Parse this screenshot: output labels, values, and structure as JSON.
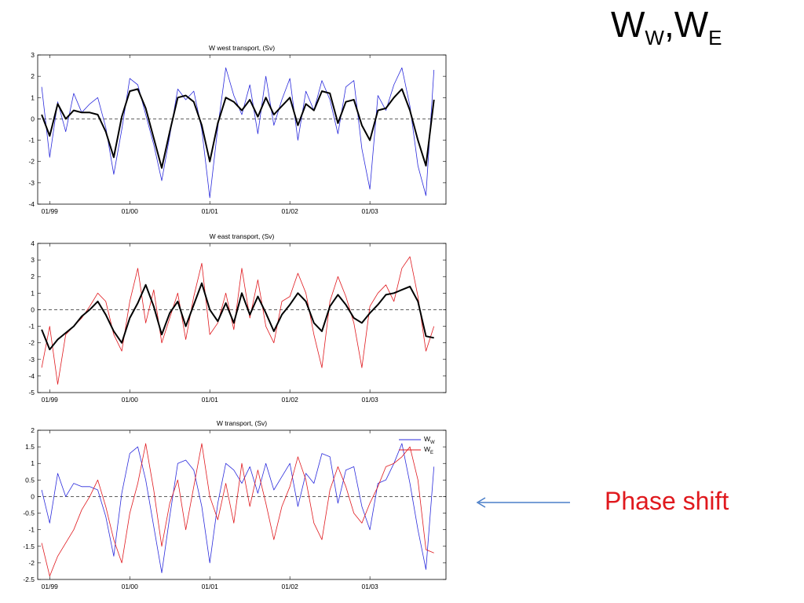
{
  "slide": {
    "title_main_1": "W",
    "title_sub_1": "W",
    "title_sep": ",",
    "title_main_2": "W",
    "title_sub_2": "E",
    "annotation": "Phase shift",
    "colors": {
      "west": "#2b2bdc",
      "east": "#e0191e",
      "smoothed": "#000000",
      "annotation": "#e0191e",
      "arrow": "#4a7ec8"
    }
  },
  "chart_data": [
    {
      "type": "line",
      "title": "W west transport, (Sv)",
      "xticks": [
        "01/99",
        "01/00",
        "01/01",
        "01/02",
        "01/03"
      ],
      "xtick_pos": [
        1999.0,
        2000.0,
        2001.0,
        2002.0,
        2003.0
      ],
      "xlim": [
        1998.85,
        2003.95
      ],
      "ylim": [
        -4,
        3
      ],
      "yticks": [
        3,
        2,
        1,
        0,
        -1,
        -2,
        -3,
        -4
      ],
      "zero_line": "dashed",
      "series": [
        {
          "color": "#2b2bdc",
          "style": "raw",
          "x": [
            1998.9,
            1999.0,
            1999.1,
            1999.2,
            1999.3,
            1999.4,
            1999.5,
            1999.6,
            1999.7,
            1999.8,
            1999.9,
            2000.0,
            2000.1,
            2000.2,
            2000.3,
            2000.4,
            2000.5,
            2000.6,
            2000.7,
            2000.8,
            2000.9,
            2001.0,
            2001.1,
            2001.2,
            2001.3,
            2001.4,
            2001.5,
            2001.6,
            2001.7,
            2001.8,
            2001.9,
            2002.0,
            2002.1,
            2002.2,
            2002.3,
            2002.4,
            2002.5,
            2002.6,
            2002.7,
            2002.8,
            2002.9,
            2003.0,
            2003.1,
            2003.2,
            2003.3,
            2003.4,
            2003.5,
            2003.6,
            2003.7,
            2003.8
          ],
          "y": [
            1.5,
            -1.8,
            0.8,
            -0.6,
            1.2,
            0.3,
            0.7,
            1.0,
            -0.4,
            -2.6,
            -0.5,
            1.9,
            1.6,
            0.2,
            -1.2,
            -2.9,
            -0.8,
            1.4,
            0.9,
            1.3,
            -0.5,
            -3.7,
            -0.4,
            2.4,
            1.1,
            0.2,
            1.6,
            -0.7,
            2.0,
            -0.3,
            0.9,
            1.9,
            -1.0,
            1.3,
            0.4,
            1.8,
            0.9,
            -0.7,
            1.5,
            1.8,
            -1.4,
            -3.3,
            1.1,
            0.4,
            1.6,
            2.4,
            0.6,
            -2.2,
            -3.6,
            2.3
          ]
        },
        {
          "color": "#000000",
          "style": "smoothed",
          "x": [
            1998.9,
            1999.0,
            1999.1,
            1999.2,
            1999.3,
            1999.4,
            1999.5,
            1999.6,
            1999.7,
            1999.8,
            1999.9,
            2000.0,
            2000.1,
            2000.2,
            2000.3,
            2000.4,
            2000.5,
            2000.6,
            2000.7,
            2000.8,
            2000.9,
            2001.0,
            2001.1,
            2001.2,
            2001.3,
            2001.4,
            2001.5,
            2001.6,
            2001.7,
            2001.8,
            2001.9,
            2002.0,
            2002.1,
            2002.2,
            2002.3,
            2002.4,
            2002.5,
            2002.6,
            2002.7,
            2002.8,
            2002.9,
            2003.0,
            2003.1,
            2003.2,
            2003.3,
            2003.4,
            2003.5,
            2003.6,
            2003.7,
            2003.8
          ],
          "y": [
            0.2,
            -0.8,
            0.7,
            0.0,
            0.4,
            0.3,
            0.3,
            0.2,
            -0.6,
            -1.8,
            0.1,
            1.3,
            1.4,
            0.5,
            -0.9,
            -2.3,
            -0.6,
            1.0,
            1.1,
            0.8,
            -0.3,
            -2.0,
            -0.2,
            1.0,
            0.8,
            0.4,
            0.9,
            0.1,
            1.0,
            0.2,
            0.6,
            1.0,
            -0.3,
            0.7,
            0.4,
            1.3,
            1.2,
            -0.2,
            0.8,
            0.9,
            -0.3,
            -1.0,
            0.4,
            0.5,
            1.0,
            1.4,
            0.4,
            -1.0,
            -2.2,
            0.9
          ]
        }
      ]
    },
    {
      "type": "line",
      "title": "W east transport, (Sv)",
      "xticks": [
        "01/99",
        "01/00",
        "01/01",
        "01/02",
        "01/03"
      ],
      "xtick_pos": [
        1999.0,
        2000.0,
        2001.0,
        2002.0,
        2003.0
      ],
      "xlim": [
        1998.85,
        2003.95
      ],
      "ylim": [
        -5,
        4
      ],
      "yticks": [
        4,
        3,
        2,
        1,
        0,
        -1,
        -2,
        -3,
        -4,
        -5
      ],
      "zero_line": "dashed",
      "series": [
        {
          "color": "#e0191e",
          "style": "raw",
          "x": [
            1998.9,
            1999.0,
            1999.1,
            1999.2,
            1999.3,
            1999.4,
            1999.5,
            1999.6,
            1999.7,
            1999.8,
            1999.9,
            2000.0,
            2000.1,
            2000.2,
            2000.3,
            2000.4,
            2000.5,
            2000.6,
            2000.7,
            2000.8,
            2000.9,
            2001.0,
            2001.1,
            2001.2,
            2001.3,
            2001.4,
            2001.5,
            2001.6,
            2001.7,
            2001.8,
            2001.9,
            2002.0,
            2002.1,
            2002.2,
            2002.3,
            2002.4,
            2002.5,
            2002.6,
            2002.7,
            2002.8,
            2002.9,
            2003.0,
            2003.1,
            2003.2,
            2003.3,
            2003.4,
            2003.5,
            2003.6,
            2003.7,
            2003.8
          ],
          "y": [
            -3.5,
            -1.0,
            -4.5,
            -1.5,
            -1.0,
            -0.5,
            0.2,
            1.0,
            0.5,
            -1.5,
            -2.5,
            0.5,
            2.5,
            -0.8,
            1.2,
            -2.0,
            -0.5,
            1.0,
            -1.8,
            0.8,
            2.8,
            -1.5,
            -0.8,
            1.0,
            -1.2,
            2.5,
            -0.5,
            1.8,
            -1.0,
            -2.0,
            0.5,
            0.8,
            2.2,
            1.0,
            -1.5,
            -3.5,
            0.5,
            2.0,
            0.8,
            -0.8,
            -3.5,
            0.2,
            1.0,
            1.5,
            0.5,
            2.5,
            3.2,
            0.8,
            -2.5,
            -1.0
          ]
        },
        {
          "color": "#000000",
          "style": "smoothed",
          "x": [
            1998.9,
            1999.0,
            1999.1,
            1999.2,
            1999.3,
            1999.4,
            1999.5,
            1999.6,
            1999.7,
            1999.8,
            1999.9,
            2000.0,
            2000.1,
            2000.2,
            2000.3,
            2000.4,
            2000.5,
            2000.6,
            2000.7,
            2000.8,
            2000.9,
            2001.0,
            2001.1,
            2001.2,
            2001.3,
            2001.4,
            2001.5,
            2001.6,
            2001.7,
            2001.8,
            2001.9,
            2002.0,
            2002.1,
            2002.2,
            2002.3,
            2002.4,
            2002.5,
            2002.6,
            2002.7,
            2002.8,
            2002.9,
            2003.0,
            2003.1,
            2003.2,
            2003.3,
            2003.4,
            2003.5,
            2003.6,
            2003.7,
            2003.8
          ],
          "y": [
            -1.2,
            -2.4,
            -1.8,
            -1.4,
            -1.0,
            -0.4,
            0.0,
            0.5,
            -0.3,
            -1.3,
            -2.0,
            -0.5,
            0.4,
            1.5,
            0.2,
            -1.5,
            -0.2,
            0.5,
            -1.0,
            0.3,
            1.6,
            0.0,
            -0.7,
            0.4,
            -0.8,
            1.0,
            -0.3,
            0.8,
            -0.2,
            -1.3,
            -0.3,
            0.3,
            1.0,
            0.5,
            -0.8,
            -1.3,
            0.2,
            0.9,
            0.3,
            -0.5,
            -0.8,
            -0.2,
            0.3,
            0.9,
            1.0,
            1.2,
            1.4,
            0.5,
            -1.6,
            -1.7
          ]
        }
      ]
    },
    {
      "type": "line",
      "title": "W transport, (Sv)",
      "xticks": [
        "01/99",
        "01/00",
        "01/01",
        "01/02",
        "01/03"
      ],
      "xtick_pos": [
        1999.0,
        2000.0,
        2001.0,
        2002.0,
        2003.0
      ],
      "xlim": [
        1998.85,
        2003.95
      ],
      "ylim": [
        -2.5,
        2
      ],
      "yticks": [
        2,
        1.5,
        1,
        0.5,
        0,
        -0.5,
        -1,
        -1.5,
        -2,
        -2.5
      ],
      "zero_line": "dashed",
      "legend_placement": "top-right",
      "legend": [
        {
          "main": "W",
          "sub": "W",
          "color": "#2b2bdc"
        },
        {
          "main": "W",
          "sub": "E",
          "color": "#e0191e"
        }
      ],
      "series": [
        {
          "color": "#2b2bdc",
          "style": "thin",
          "x": [
            1998.9,
            1999.0,
            1999.1,
            1999.2,
            1999.3,
            1999.4,
            1999.5,
            1999.6,
            1999.7,
            1999.8,
            1999.9,
            2000.0,
            2000.1,
            2000.2,
            2000.3,
            2000.4,
            2000.5,
            2000.6,
            2000.7,
            2000.8,
            2000.9,
            2001.0,
            2001.1,
            2001.2,
            2001.3,
            2001.4,
            2001.5,
            2001.6,
            2001.7,
            2001.8,
            2001.9,
            2002.0,
            2002.1,
            2002.2,
            2002.3,
            2002.4,
            2002.5,
            2002.6,
            2002.7,
            2002.8,
            2002.9,
            2003.0,
            2003.1,
            2003.2,
            2003.3,
            2003.4,
            2003.5,
            2003.6,
            2003.7,
            2003.8
          ],
          "y": [
            0.2,
            -0.8,
            0.7,
            0.0,
            0.4,
            0.3,
            0.3,
            0.2,
            -0.6,
            -1.8,
            0.1,
            1.3,
            1.5,
            0.5,
            -0.9,
            -2.3,
            -0.6,
            1.0,
            1.1,
            0.8,
            -0.3,
            -2.0,
            -0.2,
            1.0,
            0.8,
            0.4,
            0.9,
            0.1,
            1.0,
            0.2,
            0.6,
            1.0,
            -0.3,
            0.7,
            0.4,
            1.3,
            1.2,
            -0.2,
            0.8,
            0.9,
            -0.3,
            -1.0,
            0.4,
            0.5,
            1.0,
            1.6,
            0.4,
            -1.0,
            -2.2,
            0.9
          ]
        },
        {
          "color": "#e0191e",
          "style": "thin",
          "x": [
            1998.9,
            1999.0,
            1999.1,
            1999.2,
            1999.3,
            1999.4,
            1999.5,
            1999.6,
            1999.7,
            1999.8,
            1999.9,
            2000.0,
            2000.1,
            2000.2,
            2000.3,
            2000.4,
            2000.5,
            2000.6,
            2000.7,
            2000.8,
            2000.9,
            2001.0,
            2001.1,
            2001.2,
            2001.3,
            2001.4,
            2001.5,
            2001.6,
            2001.7,
            2001.8,
            2001.9,
            2002.0,
            2002.1,
            2002.2,
            2002.3,
            2002.4,
            2002.5,
            2002.6,
            2002.7,
            2002.8,
            2002.9,
            2003.0,
            2003.1,
            2003.2,
            2003.3,
            2003.4,
            2003.5,
            2003.6,
            2003.7,
            2003.8
          ],
          "y": [
            -1.4,
            -2.4,
            -1.8,
            -1.4,
            -1.0,
            -0.4,
            0.0,
            0.5,
            -0.3,
            -1.3,
            -2.0,
            -0.5,
            0.4,
            1.6,
            0.2,
            -1.5,
            -0.2,
            0.5,
            -1.0,
            0.3,
            1.6,
            0.0,
            -0.7,
            0.4,
            -0.8,
            1.0,
            -0.3,
            0.8,
            -0.2,
            -1.3,
            -0.3,
            0.3,
            1.2,
            0.5,
            -0.8,
            -1.3,
            0.2,
            0.9,
            0.3,
            -0.5,
            -0.8,
            -0.2,
            0.3,
            0.9,
            1.0,
            1.2,
            1.5,
            0.5,
            -1.6,
            -1.7
          ]
        }
      ]
    }
  ]
}
